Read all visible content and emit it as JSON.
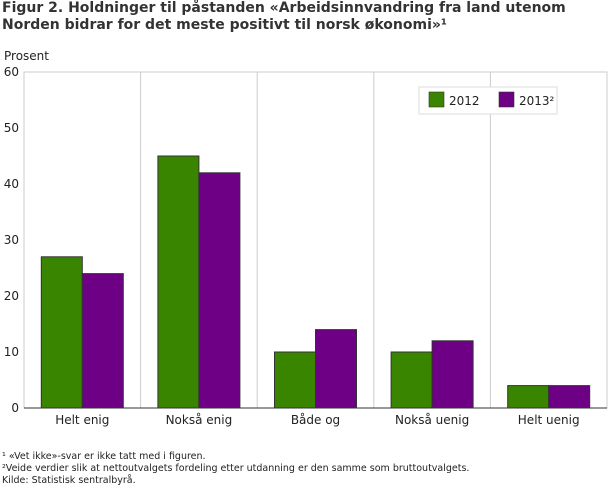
{
  "chart_data": {
    "type": "bar",
    "title": "Figur 2. Holdninger til påstanden «Arbeidsinnvandring fra land utenom Norden bidrar for det meste positivt til norsk økonomi»¹",
    "ylabel": "Prosent",
    "xlabel": "",
    "ylim": [
      0,
      60
    ],
    "yticks": [
      "0",
      "10",
      "20",
      "30",
      "40",
      "50",
      "60"
    ],
    "categories": [
      "Helt enig",
      "Nokså enig",
      "Både og",
      "Nokså uenig",
      "Helt uenig"
    ],
    "series": [
      {
        "name": "2012",
        "color": "#3a8500",
        "values": [
          27,
          45,
          10,
          10,
          4
        ]
      },
      {
        "name": "2013²",
        "color": "#6e0085",
        "values": [
          24,
          42,
          14,
          12,
          4
        ]
      }
    ],
    "grid": "vertical category separators",
    "legend": "top-right"
  },
  "footnotes": [
    "¹ «Vet ikke»-svar er ikke tatt med i figuren.",
    "²Veide verdier slik at nettoutvalgets fordeling etter utdanning er den samme som bruttoutvalgets.",
    "Kilde: Statistisk sentralbyrå."
  ]
}
